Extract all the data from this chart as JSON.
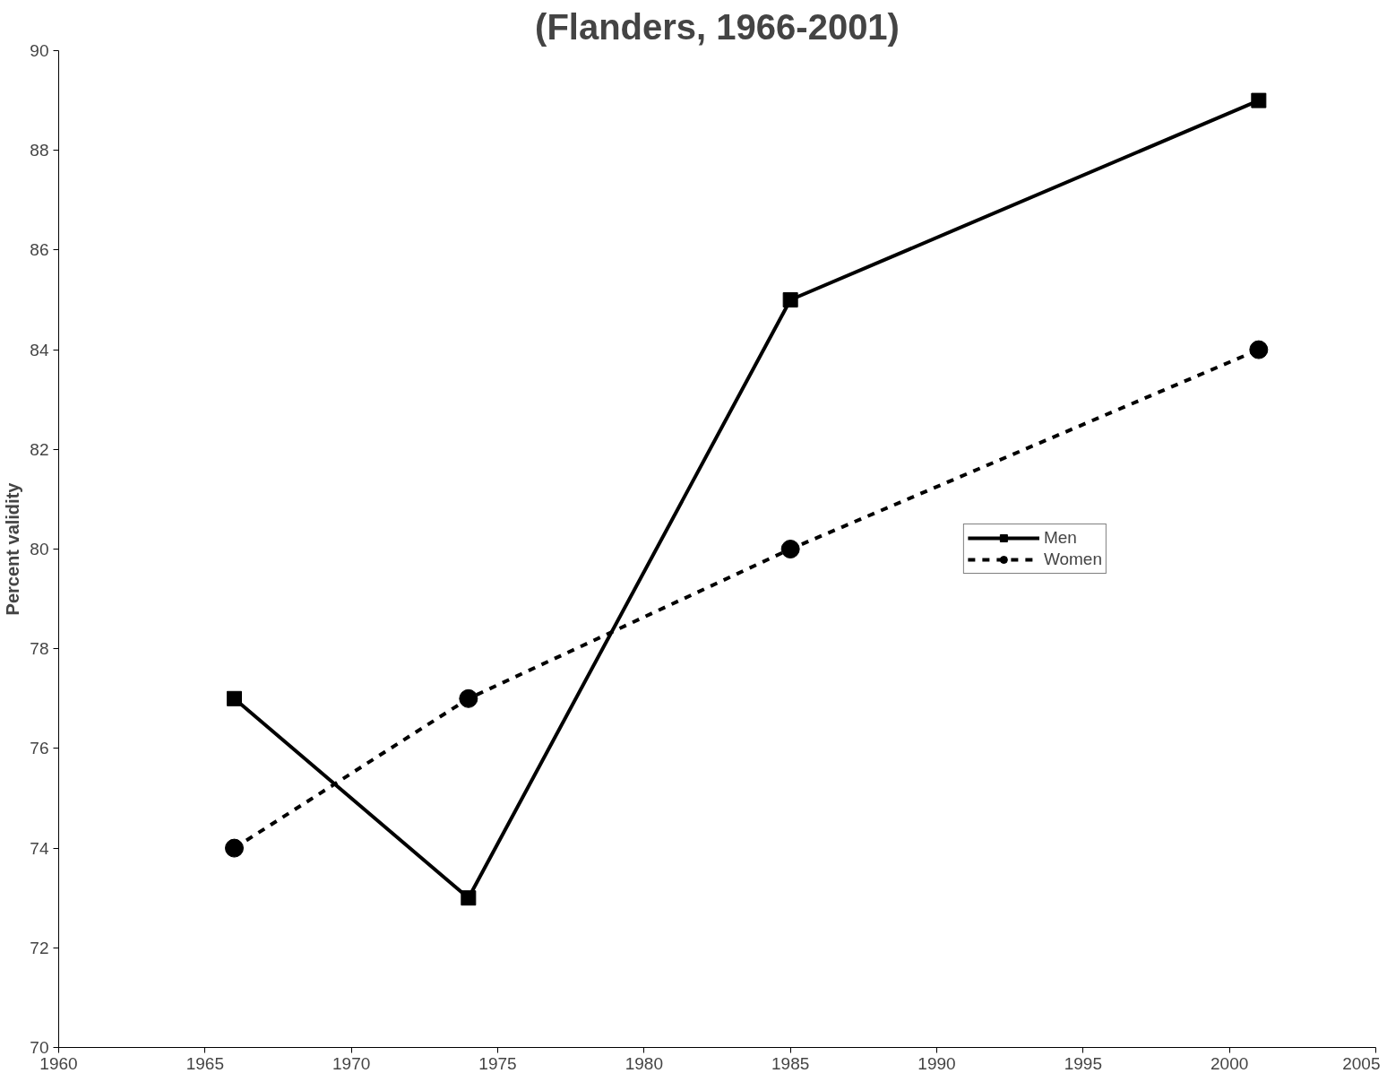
{
  "chart_data": {
    "type": "line",
    "title": "(Flanders, 1966-2001)",
    "ylabel": "Percent validity",
    "x": [
      1966,
      1974,
      1985,
      2001
    ],
    "series": [
      {
        "name": "Men",
        "color": "#000000",
        "values": [
          77,
          73,
          85,
          89
        ],
        "marker": "square",
        "line_style": "solid"
      },
      {
        "name": "Women",
        "color": "#000000",
        "values": [
          74,
          77,
          80,
          84
        ],
        "marker": "circle",
        "line_style": "dashed"
      }
    ],
    "xlim": [
      1960,
      2005
    ],
    "xticks": [
      1960,
      1965,
      1970,
      1975,
      1980,
      1985,
      1990,
      1995,
      2000,
      2005
    ],
    "ylim": [
      70,
      90
    ],
    "yticks": [
      70,
      72,
      74,
      76,
      78,
      80,
      82,
      84,
      86,
      88,
      90
    ],
    "grid": false,
    "legend": "right"
  }
}
